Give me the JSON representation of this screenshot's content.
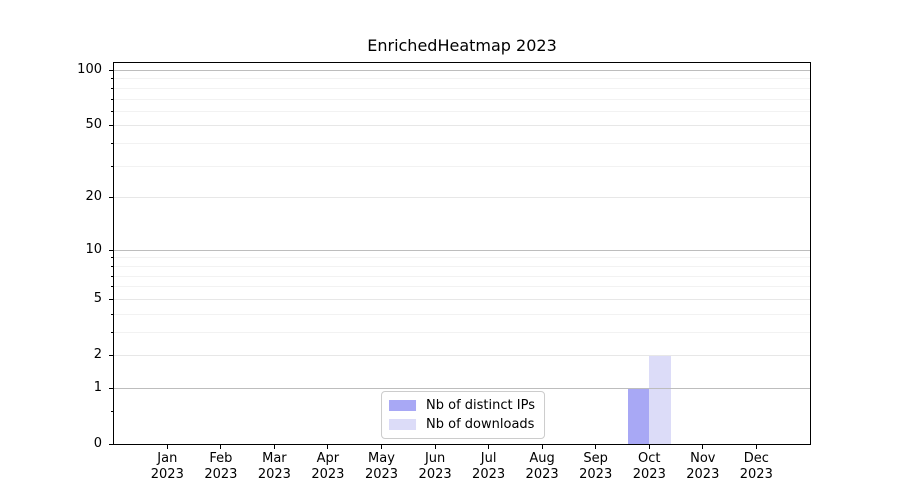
{
  "chart_data": {
    "type": "bar",
    "title": "EnrichedHeatmap 2023",
    "categories": [
      "Jan",
      "Feb",
      "Mar",
      "Apr",
      "May",
      "Jun",
      "Jul",
      "Aug",
      "Sep",
      "Oct",
      "Nov",
      "Dec"
    ],
    "year": "2023",
    "series": [
      {
        "name": "Nb of distinct IPs",
        "color": "#a8a8f5",
        "values": [
          0,
          0,
          0,
          0,
          0,
          0,
          0,
          0,
          0,
          1,
          0,
          0
        ]
      },
      {
        "name": "Nb of downloads",
        "color": "#dcdcf8",
        "values": [
          0,
          0,
          0,
          0,
          0,
          0,
          0,
          0,
          0,
          2,
          0,
          0
        ]
      }
    ],
    "xlabel": "",
    "ylabel": "",
    "yscale": "log1p",
    "ylim": [
      0,
      110
    ],
    "yticks": [
      0,
      1,
      2,
      5,
      10,
      20,
      50,
      100
    ],
    "minor_yticks": [
      0.5,
      3,
      4,
      6,
      7,
      8,
      9,
      30,
      40,
      60,
      70,
      80,
      90
    ],
    "grid": true,
    "legend_position": "lower center",
    "colors": {
      "grid_major_power": "#bdbdbd",
      "grid_major": "#e7e7e7",
      "grid_minor": "#f2f2f2",
      "spine": "#000000",
      "text": "#000000"
    }
  }
}
